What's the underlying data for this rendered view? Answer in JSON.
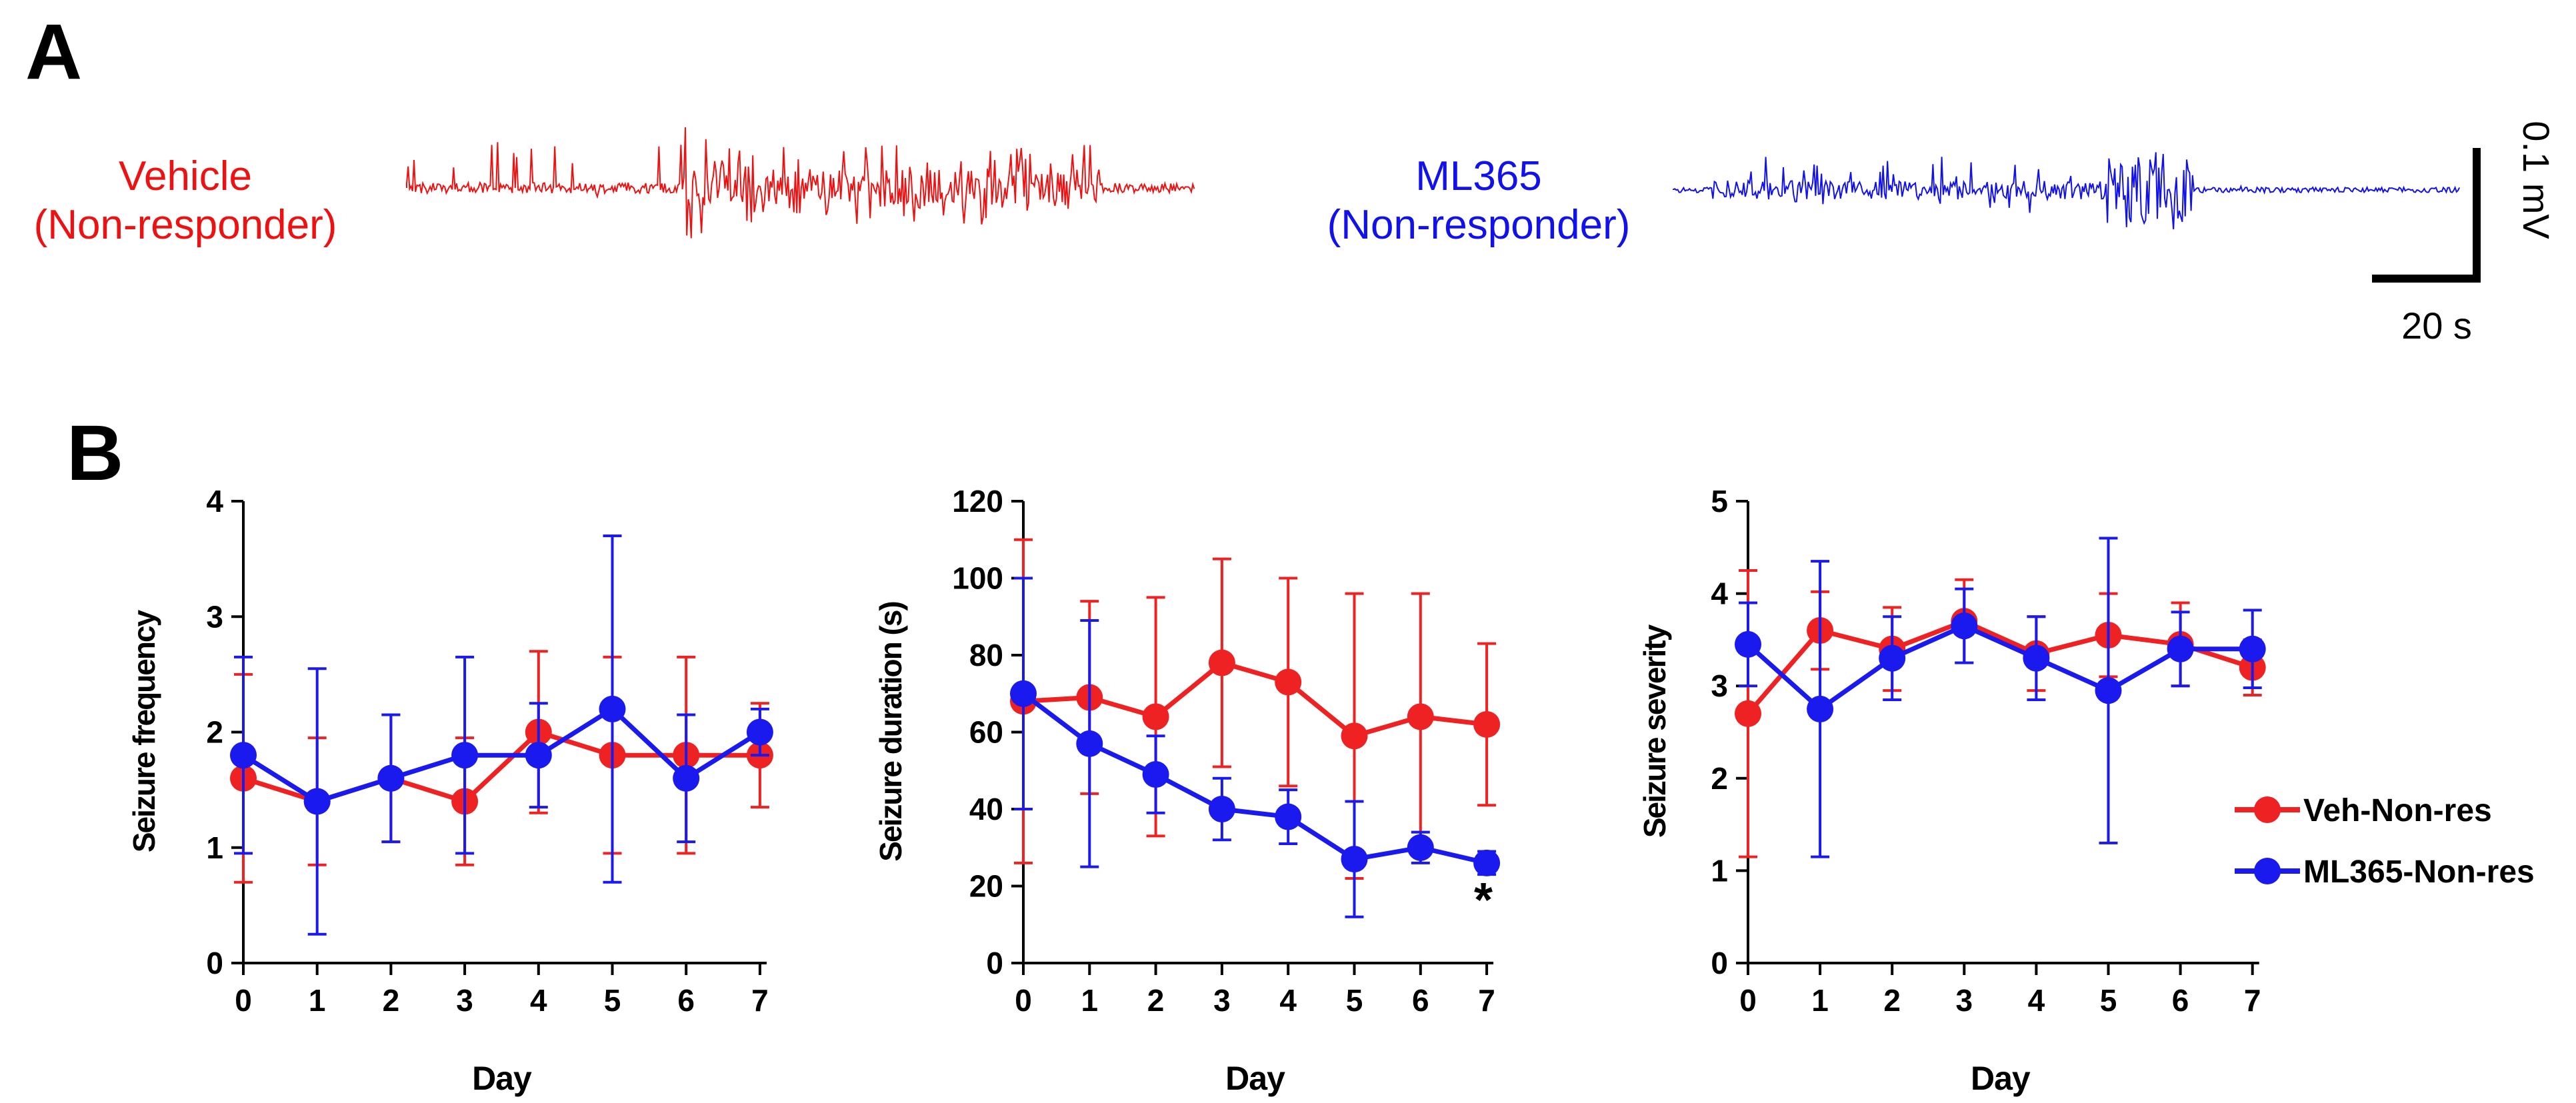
{
  "panels": {
    "a_label": "A",
    "b_label": "B"
  },
  "traces": {
    "vehicle_line1": "Vehicle",
    "vehicle_line2": "(Non-responder)",
    "ml365_line1": "ML365",
    "ml365_line2": "(Non-responder)",
    "scale_y": "0.1 mV",
    "scale_x": "20 s",
    "vehicle_color": "#ee1111",
    "ml365_color": "#1111ee"
  },
  "legend": {
    "veh": "Veh-Non-res",
    "ml": "ML365-Non-res"
  },
  "significance_mark": "*",
  "chart_data": [
    {
      "type": "line",
      "xlabel": "Day",
      "ylabel": "Seizure frequency",
      "x": [
        0,
        1,
        2,
        3,
        4,
        5,
        6,
        7
      ],
      "ylim": [
        0,
        4
      ],
      "yticks": [
        0,
        1,
        2,
        3,
        4
      ],
      "series": [
        {
          "name": "Veh-Non-res",
          "color": "#ee2222",
          "values": [
            1.6,
            1.4,
            1.6,
            1.4,
            2.0,
            1.8,
            1.8,
            1.8
          ],
          "err": [
            0.9,
            0.55,
            0.55,
            0.55,
            0.7,
            0.85,
            0.85,
            0.45
          ]
        },
        {
          "name": "ML365-Non-res",
          "color": "#1a1aee",
          "values": [
            1.8,
            1.4,
            1.6,
            1.8,
            1.8,
            2.2,
            1.6,
            2.0
          ],
          "err": [
            0.85,
            1.15,
            0.55,
            0.85,
            0.45,
            1.5,
            0.55,
            0.2
          ]
        }
      ]
    },
    {
      "type": "line",
      "xlabel": "Day",
      "ylabel": "Seizure duration (s)",
      "x": [
        0,
        1,
        2,
        3,
        4,
        5,
        6,
        7
      ],
      "ylim": [
        0,
        120
      ],
      "yticks": [
        0,
        20,
        40,
        60,
        80,
        100,
        120
      ],
      "series": [
        {
          "name": "Veh-Non-res",
          "color": "#ee2222",
          "values": [
            68,
            69,
            64,
            78,
            73,
            59,
            64,
            62
          ],
          "err": [
            42,
            25,
            31,
            27,
            27,
            37,
            32,
            21
          ]
        },
        {
          "name": "ML365-Non-res",
          "color": "#1a1aee",
          "values": [
            70,
            57,
            49,
            40,
            38,
            27,
            30,
            26
          ],
          "err": [
            30,
            32,
            10,
            8,
            7,
            15,
            4,
            3
          ]
        }
      ]
    },
    {
      "type": "line",
      "xlabel": "Day",
      "ylabel": "Seizure severity",
      "x": [
        0,
        1,
        2,
        3,
        4,
        5,
        6,
        7
      ],
      "ylim": [
        0,
        5
      ],
      "yticks": [
        0,
        1,
        2,
        3,
        4,
        5
      ],
      "series": [
        {
          "name": "Veh-Non-res",
          "color": "#ee2222",
          "values": [
            2.7,
            3.6,
            3.4,
            3.7,
            3.35,
            3.55,
            3.45,
            3.2
          ],
          "err": [
            1.55,
            0.42,
            0.45,
            0.45,
            0.4,
            0.45,
            0.45,
            0.3
          ]
        },
        {
          "name": "ML365-Non-res",
          "color": "#1a1aee",
          "values": [
            3.45,
            2.75,
            3.3,
            3.65,
            3.3,
            2.95,
            3.4,
            3.4
          ],
          "err": [
            0.45,
            1.6,
            0.45,
            0.4,
            0.45,
            1.65,
            0.4,
            0.42
          ]
        }
      ]
    }
  ]
}
